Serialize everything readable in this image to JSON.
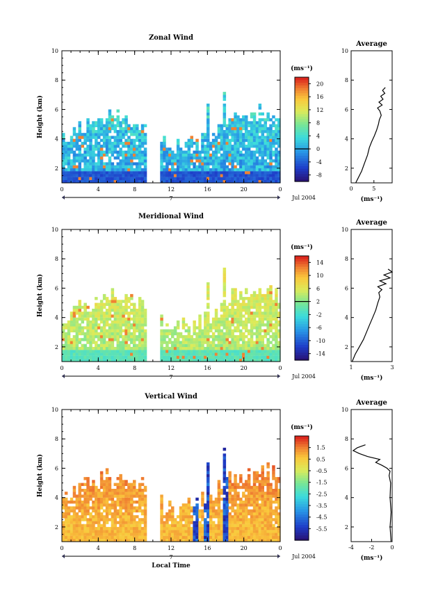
{
  "figure": {
    "xaxis_bottom_label": "Local Time",
    "date_label": "Jul 2004",
    "day_label": "7",
    "height_label": "Height (km)",
    "unit_label": "(ms⁻¹)",
    "avg_title": "Average"
  },
  "chart_data": [
    {
      "type": "heatmap",
      "title": "Zonal Wind",
      "ylabel": "Height (km)",
      "xlabel": "",
      "xlim": [
        0,
        24
      ],
      "ylim": [
        1,
        10
      ],
      "x_ticks": [
        "0",
        "4",
        "8",
        "12",
        "16",
        "20",
        "0"
      ],
      "y_ticks": [
        "2",
        "4",
        "6",
        "8",
        "10"
      ],
      "colorbar": {
        "unit": "(ms⁻¹)",
        "ticks": [
          "20",
          "16",
          "12",
          "8",
          "4",
          "0",
          "-4",
          "-8"
        ],
        "range": [
          -10,
          22
        ],
        "zero_line": 0
      },
      "average_profile": {
        "title": "Average",
        "xlim": [
          0,
          9
        ],
        "x_ticks": [
          "0",
          "5"
        ],
        "xlabel": "(ms⁻¹)",
        "y_ticks": [
          "2",
          "4",
          "6",
          "8",
          "10"
        ],
        "x": [
          1.0,
          1.5,
          2.3,
          3.0,
          3.6,
          4.0,
          4.5,
          5.1,
          5.6,
          6.0,
          6.2,
          6.6,
          6.3,
          5.8,
          6.8,
          6.1,
          7.0,
          6.5,
          7.4,
          6.9,
          7.5
        ],
        "y": [
          1.0,
          1.3,
          1.8,
          2.4,
          2.9,
          3.4,
          3.8,
          4.2,
          4.6,
          5.0,
          5.3,
          5.6,
          5.9,
          6.1,
          6.3,
          6.5,
          6.7,
          6.9,
          7.1,
          7.3,
          7.5
        ]
      }
    },
    {
      "type": "heatmap",
      "title": "Meridional Wind",
      "ylabel": "Height (km)",
      "xlabel": "",
      "xlim": [
        0,
        24
      ],
      "ylim": [
        1,
        10
      ],
      "x_ticks": [
        "0",
        "4",
        "8",
        "12",
        "16",
        "20",
        "0"
      ],
      "y_ticks": [
        "2",
        "4",
        "6",
        "8",
        "10"
      ],
      "colorbar": {
        "unit": "(ms⁻¹)",
        "ticks": [
          "14",
          "10",
          "6",
          "2",
          "-2",
          "-6",
          "-10",
          "-14"
        ],
        "range": [
          -16,
          16
        ],
        "zero_line": 2
      },
      "average_profile": {
        "title": "Average",
        "xlim": [
          1,
          3
        ],
        "x_ticks": [
          "1",
          "3"
        ],
        "xlabel": "(ms⁻¹)",
        "y_ticks": [
          "2",
          "4",
          "6",
          "8",
          "10"
        ],
        "x": [
          1.05,
          1.2,
          1.4,
          1.6,
          1.75,
          1.9,
          2.05,
          2.2,
          2.3,
          2.4,
          2.35,
          2.5,
          2.3,
          2.7,
          2.4,
          2.9,
          2.6,
          3.0,
          2.8
        ],
        "y": [
          1.0,
          1.5,
          2.0,
          2.5,
          3.0,
          3.5,
          4.0,
          4.5,
          5.0,
          5.4,
          5.7,
          5.9,
          6.1,
          6.3,
          6.5,
          6.7,
          6.9,
          7.1,
          7.3
        ]
      }
    },
    {
      "type": "heatmap",
      "title": "Vertical Wind",
      "ylabel": "Height (km)",
      "xlabel": "Local Time",
      "xlim": [
        0,
        24
      ],
      "ylim": [
        1,
        10
      ],
      "x_ticks": [
        "0",
        "4",
        "8",
        "12",
        "16",
        "20",
        "0"
      ],
      "y_ticks": [
        "2",
        "4",
        "6",
        "8",
        "10"
      ],
      "colorbar": {
        "unit": "(ms⁻¹)",
        "ticks": [
          "1.5",
          "0.5",
          "-0.5",
          "-1.5",
          "-2.5",
          "-3.5",
          "-4.5",
          "-5.5"
        ],
        "range": [
          -6.5,
          2.5
        ],
        "zero_line": null
      },
      "average_profile": {
        "title": "Average",
        "xlim": [
          -4,
          0
        ],
        "x_ticks": [
          "-4",
          "-2",
          "0"
        ],
        "xlabel": "(ms⁻¹)",
        "y_ticks": [
          "2",
          "4",
          "6",
          "8",
          "10"
        ],
        "x": [
          -0.1,
          -0.2,
          -0.1,
          -0.2,
          -0.15,
          -0.3,
          -0.2,
          -0.5,
          -1.0,
          -1.6,
          -1.2,
          -2.4,
          -3.2,
          -3.8,
          -3.4,
          -2.6
        ],
        "y": [
          1.0,
          2.0,
          3.0,
          4.0,
          5.0,
          5.5,
          5.8,
          6.0,
          6.2,
          6.4,
          6.6,
          6.8,
          7.0,
          7.2,
          7.4,
          7.6
        ]
      }
    }
  ]
}
